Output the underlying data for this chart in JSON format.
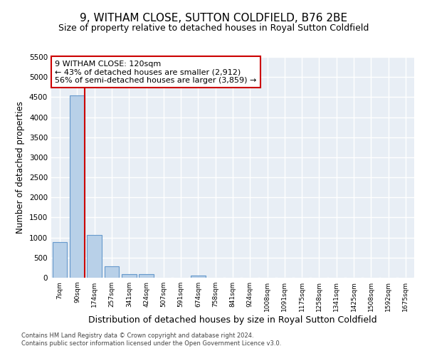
{
  "title": "9, WITHAM CLOSE, SUTTON COLDFIELD, B76 2BE",
  "subtitle": "Size of property relative to detached houses in Royal Sutton Coldfield",
  "xlabel": "Distribution of detached houses by size in Royal Sutton Coldfield",
  "ylabel": "Number of detached properties",
  "footnote1": "Contains HM Land Registry data © Crown copyright and database right 2024.",
  "footnote2": "Contains public sector information licensed under the Open Government Licence v3.0.",
  "categories": [
    "7sqm",
    "90sqm",
    "174sqm",
    "257sqm",
    "341sqm",
    "424sqm",
    "507sqm",
    "591sqm",
    "674sqm",
    "758sqm",
    "841sqm",
    "924sqm",
    "1008sqm",
    "1091sqm",
    "1175sqm",
    "1258sqm",
    "1341sqm",
    "1425sqm",
    "1508sqm",
    "1592sqm",
    "1675sqm"
  ],
  "values": [
    880,
    4550,
    1060,
    280,
    95,
    85,
    0,
    0,
    50,
    0,
    0,
    0,
    0,
    0,
    0,
    0,
    0,
    0,
    0,
    0,
    0
  ],
  "bar_color": "#b8d0e8",
  "bar_edge_color": "#6699cc",
  "background_color": "#e8eef5",
  "grid_color": "#ffffff",
  "vline_x": 1.45,
  "vline_color": "#cc0000",
  "annotation_text": "9 WITHAM CLOSE: 120sqm\n← 43% of detached houses are smaller (2,912)\n56% of semi-detached houses are larger (3,859) →",
  "annotation_box_color": "#cc0000",
  "ylim": [
    0,
    5500
  ],
  "yticks": [
    0,
    500,
    1000,
    1500,
    2000,
    2500,
    3000,
    3500,
    4000,
    4500,
    5000,
    5500
  ],
  "title_fontsize": 11,
  "subtitle_fontsize": 9,
  "ylabel_fontsize": 8.5,
  "xlabel_fontsize": 9,
  "annot_fontsize": 8
}
